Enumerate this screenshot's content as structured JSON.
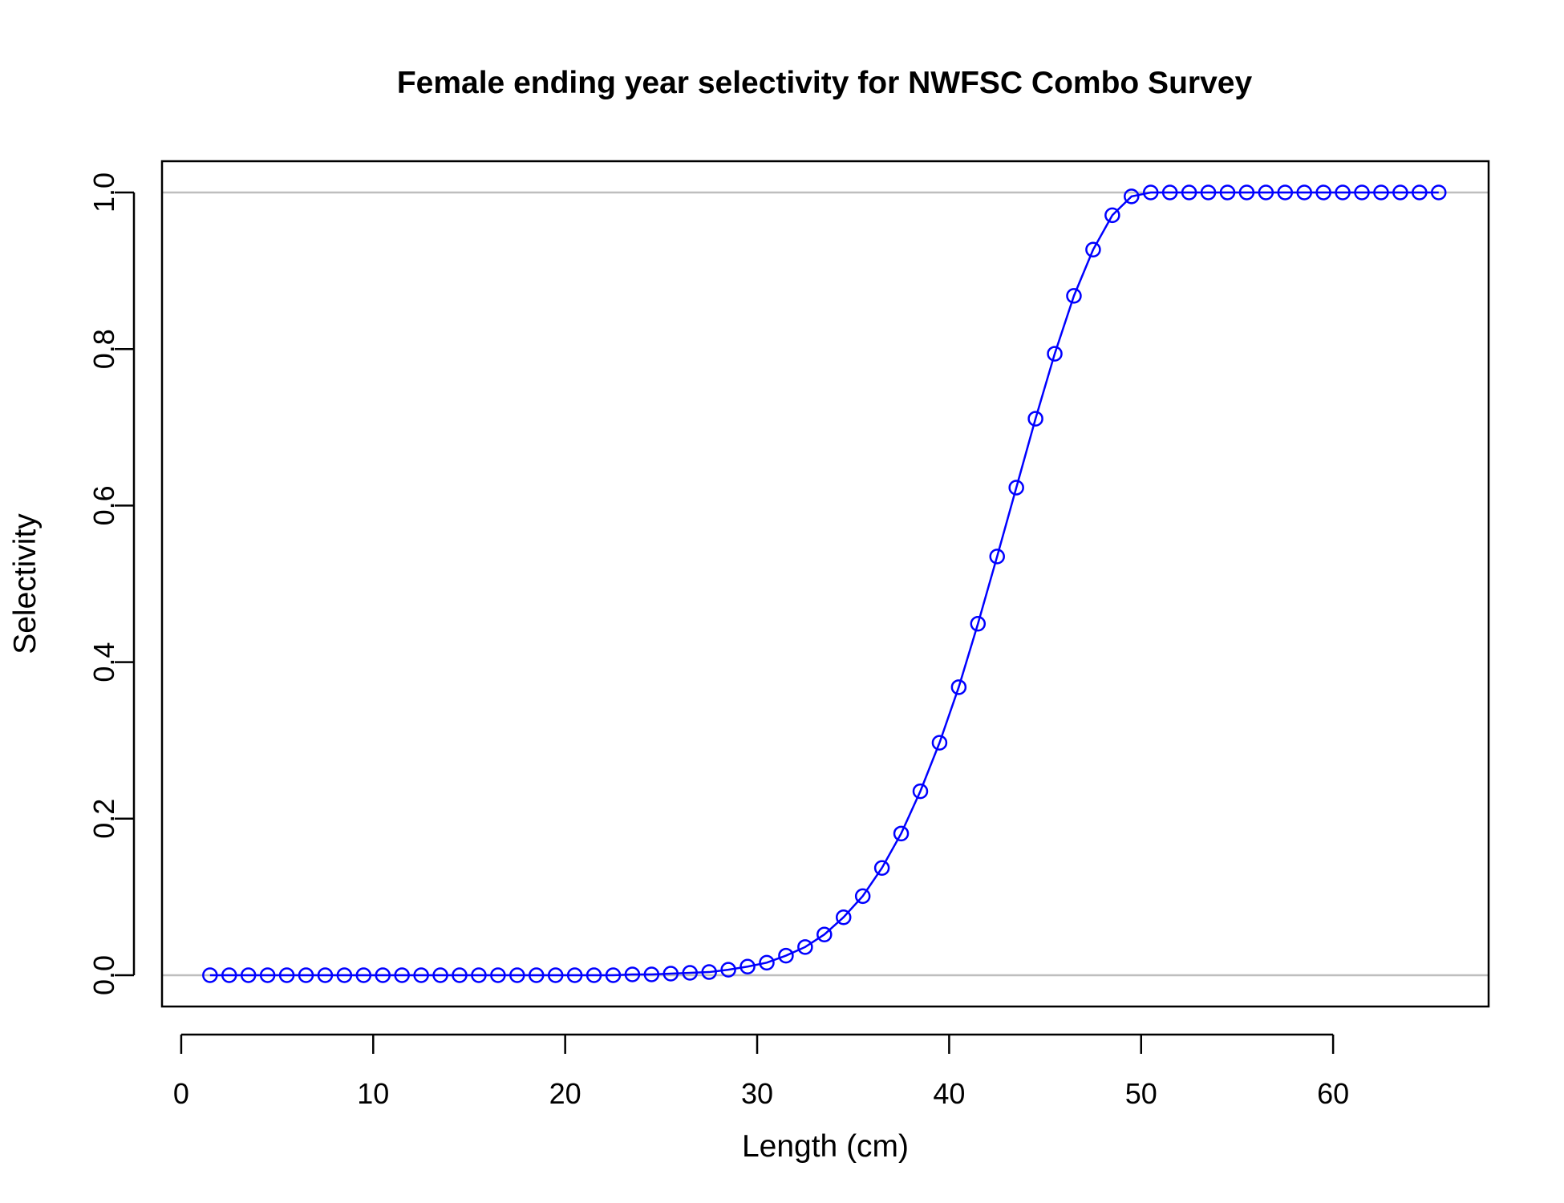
{
  "chart_data": {
    "type": "line",
    "title": "Female ending year selectivity for NWFSC Combo Survey",
    "xlabel": "Length (cm)",
    "ylabel": "Selectivity",
    "xlim": [
      -1.0,
      68.1
    ],
    "ylim": [
      -0.04,
      1.04
    ],
    "x_ticks": [
      0,
      10,
      20,
      30,
      40,
      50,
      60
    ],
    "y_ticks": [
      0.0,
      0.2,
      0.4,
      0.6,
      0.8,
      1.0
    ],
    "x_tick_labels": [
      "0",
      "10",
      "20",
      "30",
      "40",
      "50",
      "60"
    ],
    "y_tick_labels": [
      "0.0",
      "0.2",
      "0.4",
      "0.6",
      "0.8",
      "1.0"
    ],
    "reference_lines_y": [
      0.0,
      1.0
    ],
    "series": [
      {
        "color": "#0000ff",
        "marker": "open-circle",
        "x": [
          1.5,
          2.5,
          3.5,
          4.5,
          5.5,
          6.5,
          7.5,
          8.5,
          9.5,
          10.5,
          11.5,
          12.5,
          13.5,
          14.5,
          15.5,
          16.5,
          17.5,
          18.5,
          19.5,
          20.5,
          21.5,
          22.5,
          23.5,
          24.5,
          25.5,
          26.5,
          27.5,
          28.5,
          29.5,
          30.5,
          31.5,
          32.5,
          33.5,
          34.5,
          35.5,
          36.5,
          37.5,
          38.5,
          39.5,
          40.5,
          41.5,
          42.5,
          43.5,
          44.5,
          45.5,
          46.5,
          47.5,
          48.5,
          49.5,
          50.5,
          51.5,
          52.5,
          53.5,
          54.5,
          55.5,
          56.5,
          57.5,
          58.5,
          59.5,
          60.5,
          61.5,
          62.5,
          63.5,
          64.5,
          65.5
        ],
        "y": [
          0,
          0,
          0,
          0,
          0,
          0,
          0,
          0,
          0,
          0,
          0,
          0,
          0,
          0,
          0,
          0,
          0,
          0,
          0,
          0,
          0,
          0,
          0.001,
          0.001,
          0.002,
          0.003,
          0.004,
          0.007,
          0.011,
          0.016,
          0.025,
          0.036,
          0.052,
          0.074,
          0.101,
          0.137,
          0.181,
          0.235,
          0.297,
          0.368,
          0.449,
          0.535,
          0.623,
          0.711,
          0.794,
          0.868,
          0.927,
          0.971,
          0.995,
          1.0,
          1.0,
          1.0,
          1.0,
          1.0,
          1.0,
          1.0,
          1.0,
          1.0,
          1.0,
          1.0,
          1.0,
          1.0,
          1.0,
          1.0,
          1.0
        ]
      }
    ]
  }
}
